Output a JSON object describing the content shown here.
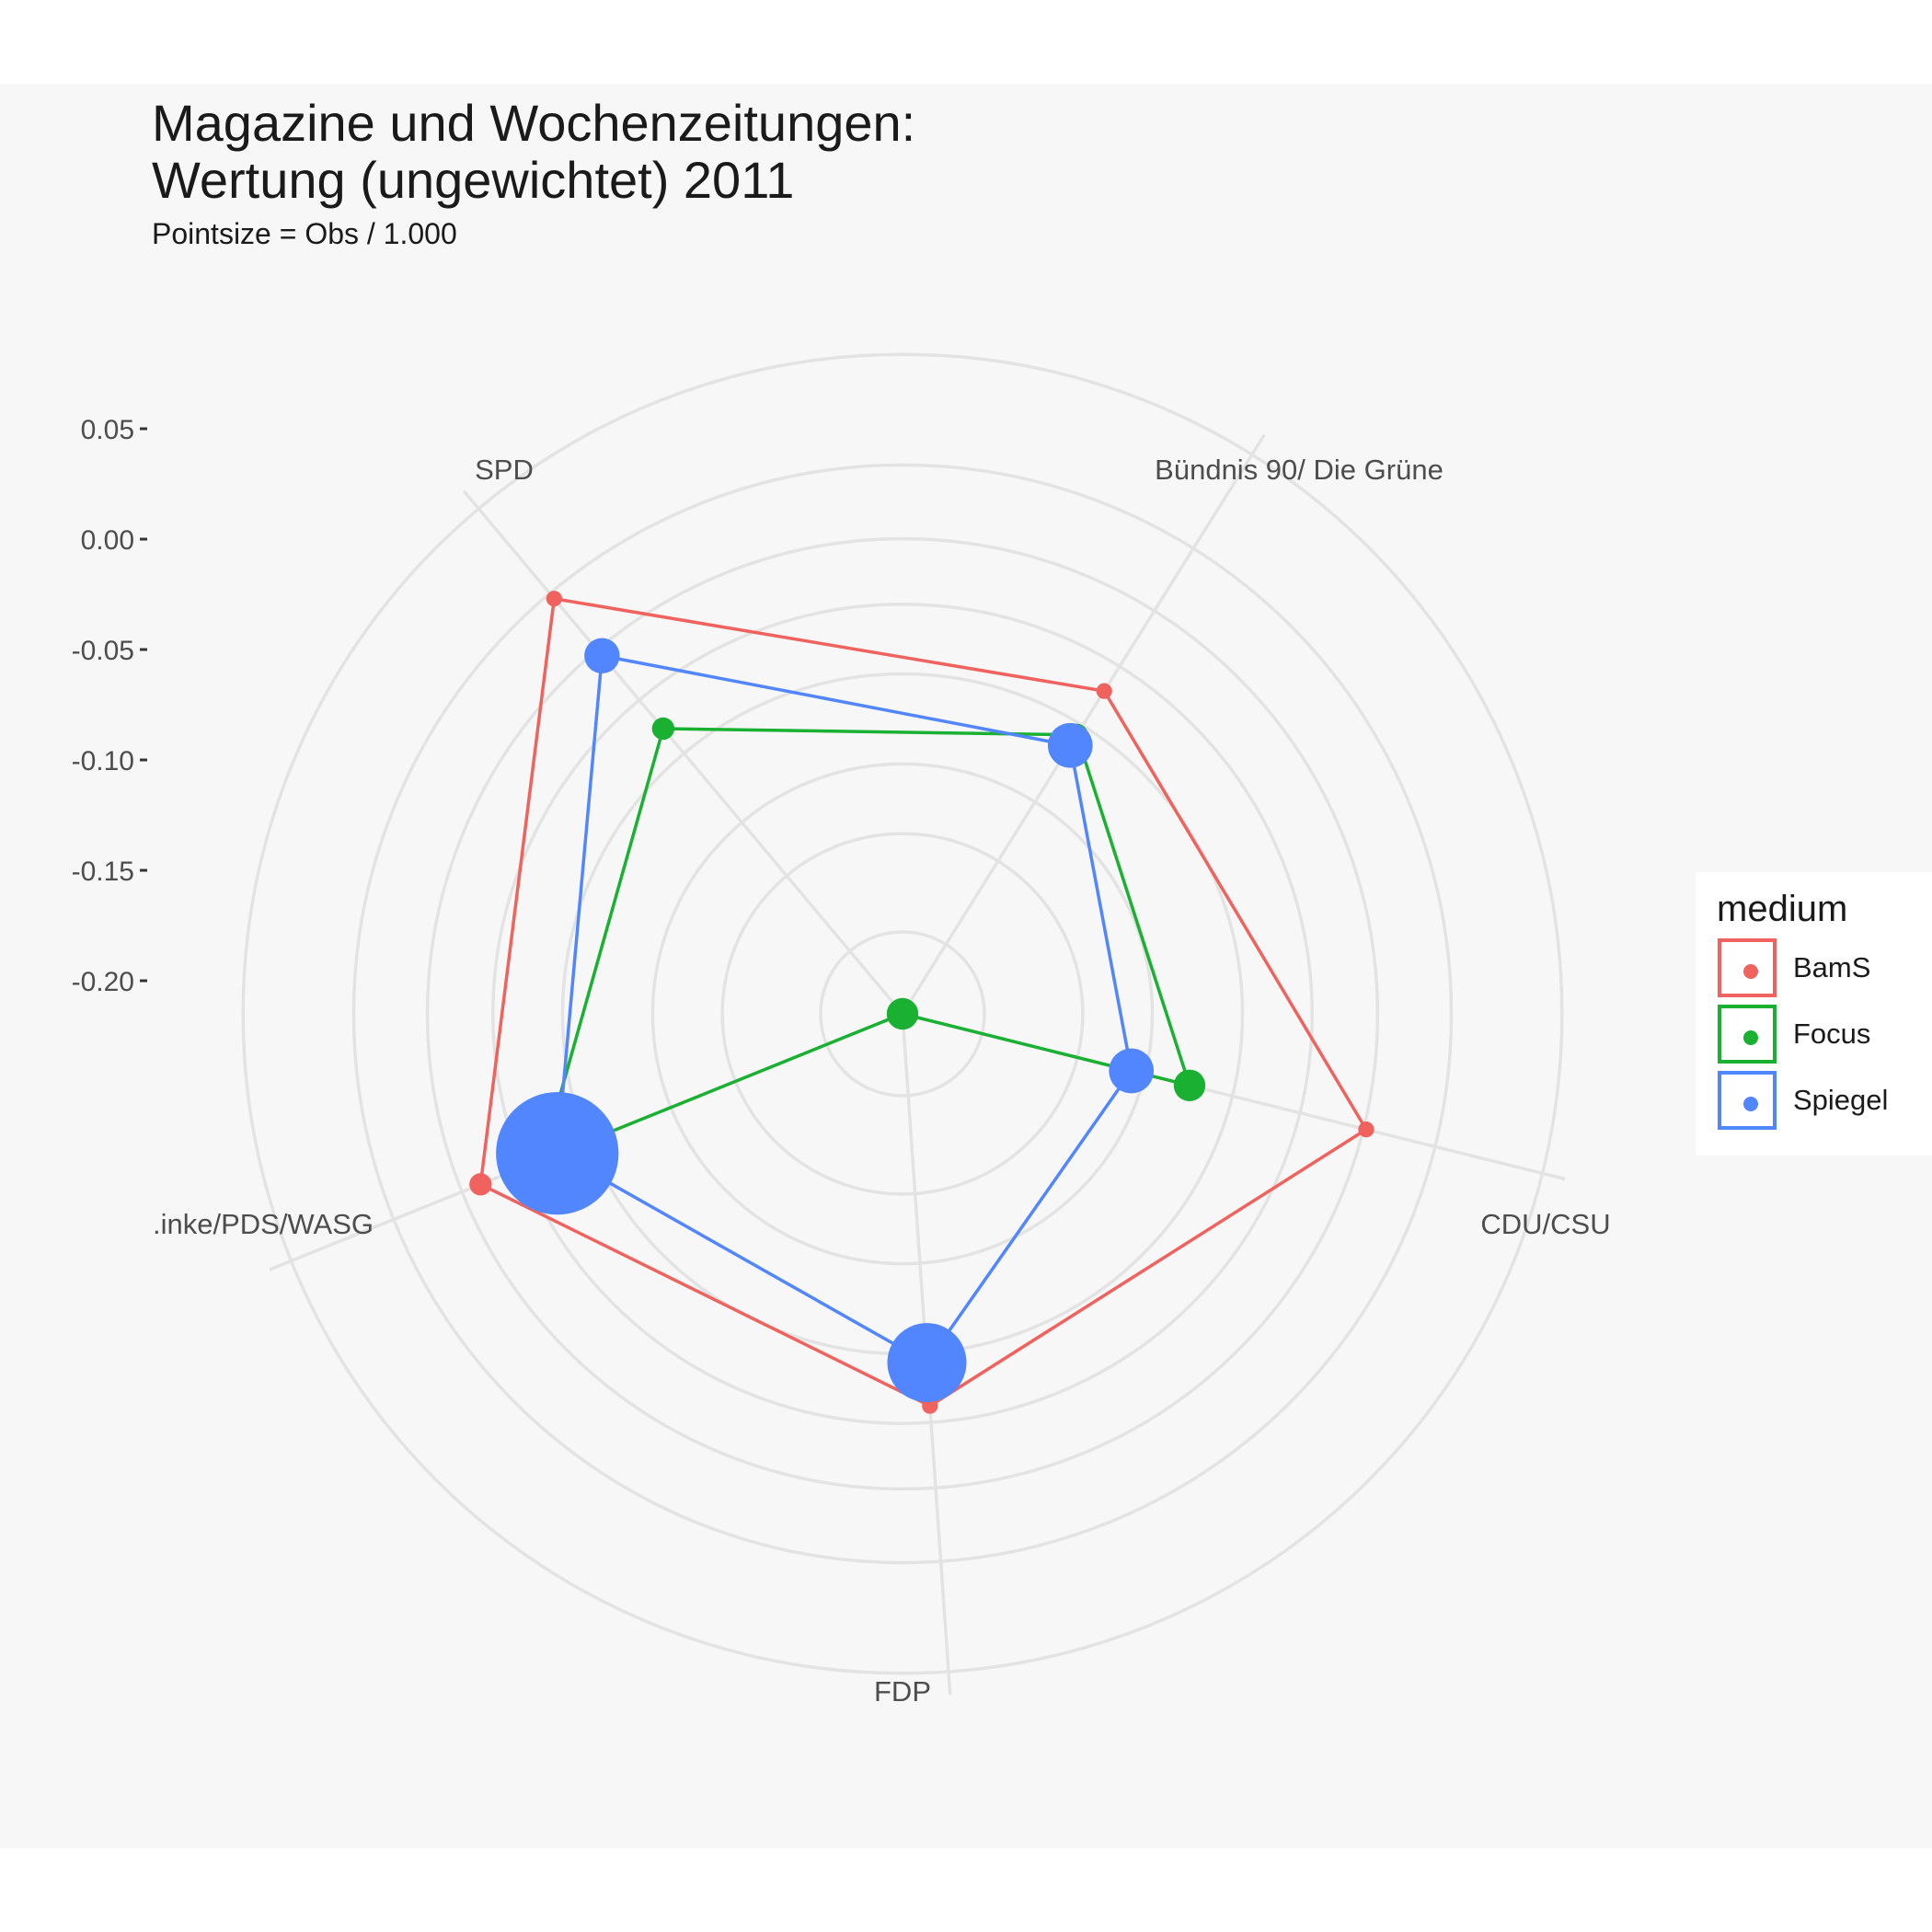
{
  "title_line_1": "Magazine und Wochenzeitungen:",
  "title_line_2": "Wertung (ungewichtet) 2011",
  "subtitle": "Pointsize = Obs / 1.000",
  "legend": {
    "title": "medium",
    "items": [
      {
        "label": "BamS",
        "color": "#f0625e"
      },
      {
        "label": "Focus",
        "color": "#1ab032"
      },
      {
        "label": "Spiegel",
        "color": "#5286ff"
      }
    ]
  },
  "chart_data": {
    "type": "radar",
    "title": "Magazine und Wochenzeitungen: Wertung (ungewichtet) 2011",
    "subtitle": "Pointsize = Obs / 1.000",
    "categories": [
      "Bündnis 90/ Die Grüne",
      "CDU/CSU",
      "FDP",
      ".inke/PDS/WASG",
      "SPD"
    ],
    "ylim": [
      -0.25,
      0.08
    ],
    "y_ticks": [
      "0.05",
      "0.00",
      "-0.05",
      "-0.10",
      "-0.15",
      "-0.20"
    ],
    "y_tick_values": [
      0.05,
      0.0,
      -0.05,
      -0.1,
      -0.15,
      -0.2
    ],
    "grid": true,
    "legend_position": "right",
    "series": [
      {
        "name": "BamS",
        "color": "#f0625e",
        "values": [
          0.012,
          -0.066,
          -0.019,
          -0.06,
          -0.03
        ],
        "sizes": [
          1,
          1,
          1,
          1,
          2
        ]
      },
      {
        "name": "Focus",
        "color": "#1ab032",
        "values": [
          -0.07,
          -0.091,
          -0.107,
          -0.25,
          -0.062
        ],
        "sizes": [
          2,
          2,
          4,
          4,
          2
        ]
      },
      {
        "name": "Spiegel",
        "color": "#5286ff",
        "values": [
          -0.024,
          -0.097,
          -0.136,
          -0.081,
          -0.07
        ],
        "sizes": [
          5,
          8,
          8,
          25,
          60
        ]
      }
    ]
  }
}
